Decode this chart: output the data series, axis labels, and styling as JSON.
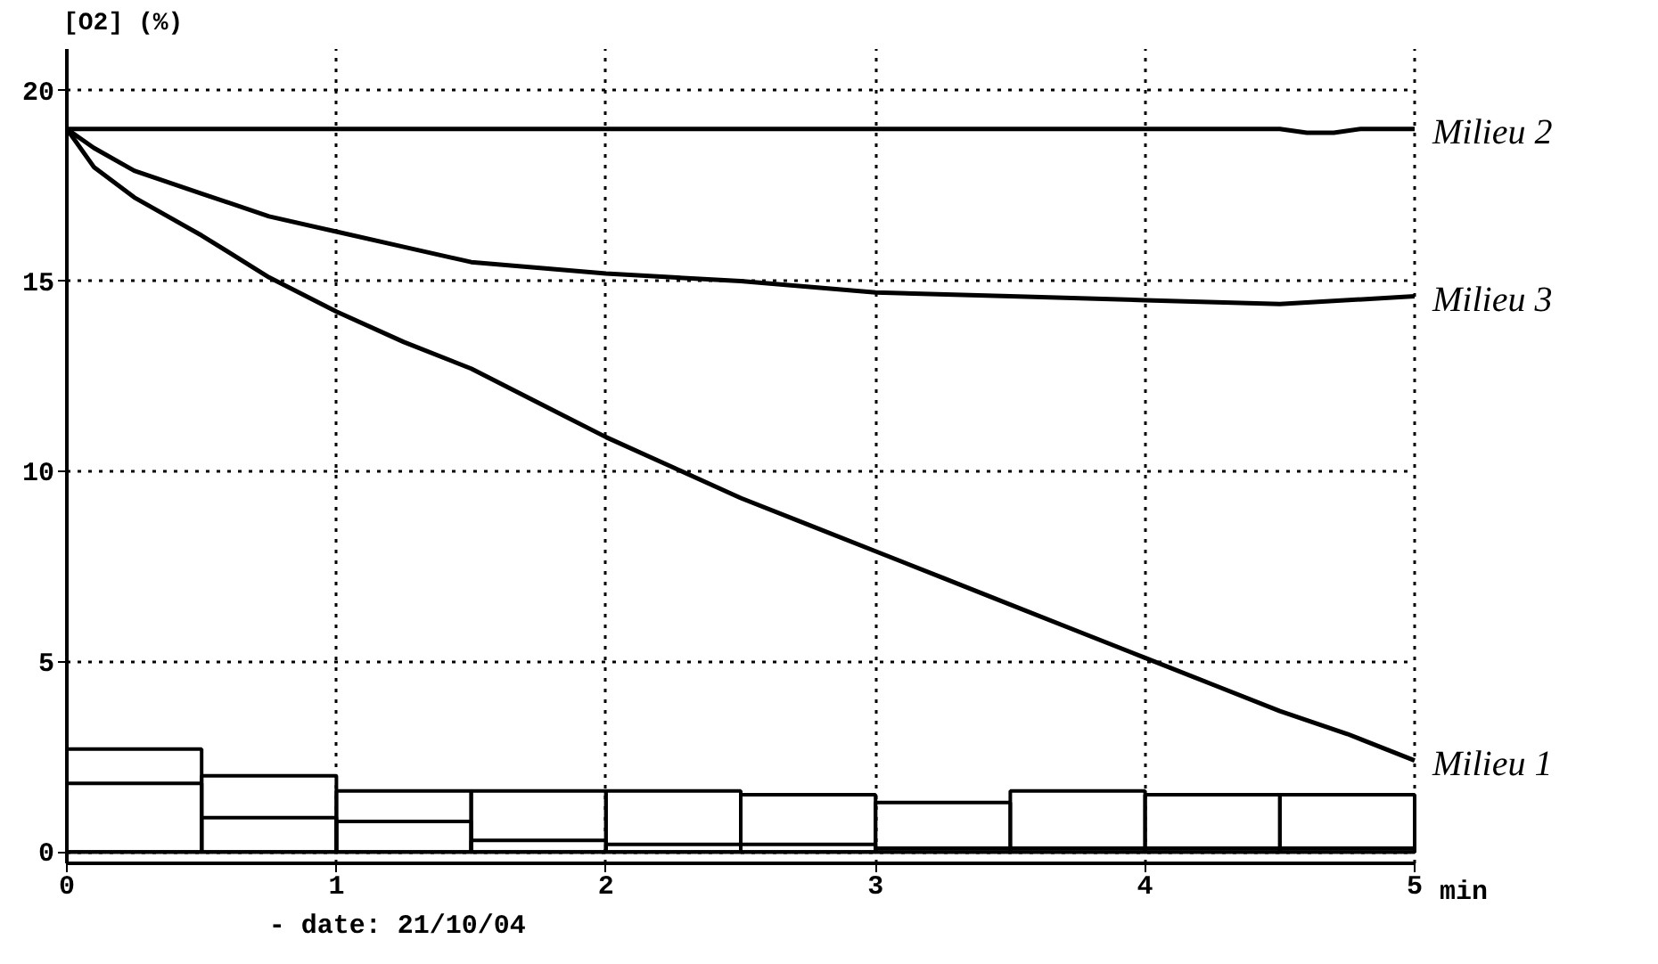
{
  "chart_data": {
    "type": "line",
    "ylabel": "[O2] (%)",
    "xlabel": "min",
    "annotations": [
      "- date: 21/10/04"
    ],
    "xlim": [
      0,
      5
    ],
    "ylim": [
      -0.3,
      21.1
    ],
    "xticks": [
      0,
      1,
      2,
      3,
      4,
      5
    ],
    "yticks": [
      0,
      5,
      10,
      15,
      20
    ],
    "grid": true,
    "line_style": "solid",
    "marker": "none",
    "series": [
      {
        "name": "Milieu 2",
        "color": "#000000",
        "x": [
          0,
          0.5,
          1,
          1.5,
          2,
          2.5,
          3,
          3.5,
          4,
          4.5,
          4.6,
          4.7,
          4.8,
          5
        ],
        "values": [
          19.0,
          19.0,
          19.0,
          19.0,
          19.0,
          19.0,
          19.0,
          19.0,
          19.0,
          19.0,
          18.9,
          18.9,
          19.0,
          19.0
        ]
      },
      {
        "name": "Milieu 3",
        "color": "#000000",
        "x": [
          0,
          0.1,
          0.25,
          0.5,
          0.75,
          1,
          1.25,
          1.5,
          2,
          2.5,
          3,
          3.5,
          4,
          4.5,
          5
        ],
        "values": [
          19.0,
          18.5,
          17.9,
          17.3,
          16.7,
          16.3,
          15.9,
          15.5,
          15.2,
          15.0,
          14.7,
          14.6,
          14.5,
          14.4,
          14.6
        ]
      },
      {
        "name": "Milieu 1",
        "color": "#000000",
        "x": [
          0,
          0.1,
          0.25,
          0.5,
          0.75,
          1,
          1.25,
          1.5,
          1.75,
          2,
          2.25,
          2.5,
          2.75,
          3,
          3.25,
          3.5,
          3.75,
          4,
          4.25,
          4.5,
          4.75,
          5
        ],
        "values": [
          19.0,
          18.0,
          17.2,
          16.2,
          15.1,
          14.2,
          13.4,
          12.7,
          11.8,
          10.9,
          10.1,
          9.3,
          8.6,
          7.9,
          7.2,
          6.5,
          5.8,
          5.1,
          4.4,
          3.7,
          3.1,
          2.4
        ]
      },
      {
        "type": "bar",
        "color": "#000000",
        "x": [
          0.25,
          0.75,
          1.25,
          1.75,
          2.25,
          2.75,
          3.25,
          3.75,
          4.25,
          4.75
        ],
        "values": [
          2.7,
          2.0,
          1.6,
          1.6,
          1.6,
          1.5,
          1.3,
          1.6,
          1.5,
          1.5
        ]
      },
      {
        "type": "bar",
        "color": "#000000",
        "x": [
          0.25,
          0.75,
          1.25,
          1.75,
          2.25,
          2.75,
          3.25,
          3.75,
          4.25,
          4.75
        ],
        "values": [
          1.8,
          0.9,
          0.8,
          0.3,
          0.2,
          0.2,
          0.1,
          0.1,
          0.1,
          0.1
        ]
      }
    ]
  }
}
